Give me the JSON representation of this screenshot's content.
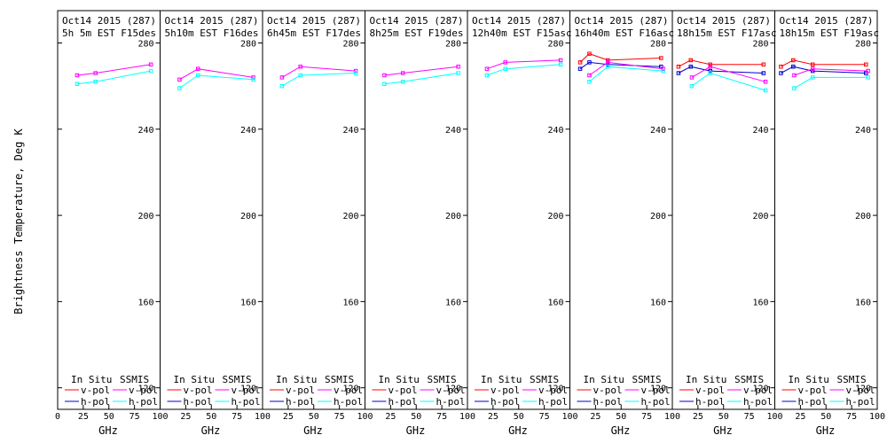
{
  "chart_data": {
    "type": "line",
    "ylabel": "Brightness Temperature, Deg K",
    "ylim": [
      110,
      295
    ],
    "yticks": [
      120,
      160,
      200,
      240,
      280
    ],
    "xlim": [
      0,
      100
    ],
    "xticks": [
      0,
      25,
      50,
      75,
      100
    ],
    "first_panel_xtick_labels": [
      "0",
      "25",
      "50",
      "75",
      "100"
    ],
    "other_panel_xtick_labels": [
      "25",
      "50",
      "75",
      "100"
    ],
    "xlabel": "GHz",
    "legend": {
      "insitu_header": "In Situ",
      "ssmis_header": "SSMIS",
      "vpol_label": "v-pol",
      "hpol_label": "h-pol"
    },
    "colors": {
      "insitu_v": "#ff0000",
      "insitu_h": "#0000cc",
      "ssmis_v": "#ff00ff",
      "ssmis_h": "#00ffff"
    },
    "panels": [
      {
        "title_line1": "Oct14 2015 (287)",
        "title_line2": "5h 5m  EST F15des",
        "series": [
          {
            "name": "SSMIS v-pol",
            "key": "ssmis_v",
            "x": [
              19,
              37,
              91
            ],
            "y": [
              265,
              266,
              270
            ]
          },
          {
            "name": "SSMIS h-pol",
            "key": "ssmis_h",
            "x": [
              19,
              37,
              91
            ],
            "y": [
              261,
              262,
              267
            ]
          }
        ]
      },
      {
        "title_line1": "Oct14 2015 (287)",
        "title_line2": "5h10m  EST F16des",
        "series": [
          {
            "name": "SSMIS v-pol",
            "key": "ssmis_v",
            "x": [
              19,
              37,
              91
            ],
            "y": [
              263,
              268,
              264
            ]
          },
          {
            "name": "SSMIS h-pol",
            "key": "ssmis_h",
            "x": [
              19,
              37,
              91
            ],
            "y": [
              259,
              265,
              263
            ]
          }
        ]
      },
      {
        "title_line1": "Oct14 2015 (287)",
        "title_line2": "6h45m  EST F17des",
        "series": [
          {
            "name": "SSMIS v-pol",
            "key": "ssmis_v",
            "x": [
              19,
              37,
              91
            ],
            "y": [
              264,
              269,
              267
            ]
          },
          {
            "name": "SSMIS h-pol",
            "key": "ssmis_h",
            "x": [
              19,
              37,
              91
            ],
            "y": [
              260,
              265,
              266
            ]
          }
        ]
      },
      {
        "title_line1": "Oct14 2015 (287)",
        "title_line2": "8h25m  EST F19des",
        "series": [
          {
            "name": "SSMIS v-pol",
            "key": "ssmis_v",
            "x": [
              19,
              37,
              91
            ],
            "y": [
              265,
              266,
              269
            ]
          },
          {
            "name": "SSMIS h-pol",
            "key": "ssmis_h",
            "x": [
              19,
              37,
              91
            ],
            "y": [
              261,
              262,
              266
            ]
          }
        ]
      },
      {
        "title_line1": "Oct14 2015 (287)",
        "title_line2": "12h40m  EST F15asc",
        "series": [
          {
            "name": "SSMIS v-pol",
            "key": "ssmis_v",
            "x": [
              19,
              37,
              91
            ],
            "y": [
              268,
              271,
              272
            ]
          },
          {
            "name": "SSMIS h-pol",
            "key": "ssmis_h",
            "x": [
              19,
              37,
              91
            ],
            "y": [
              265,
              268,
              270
            ]
          }
        ]
      },
      {
        "title_line1": "Oct14 2015 (287)",
        "title_line2": "16h40m  EST F16asc",
        "series": [
          {
            "name": "In Situ v-pol",
            "key": "insitu_v",
            "x": [
              10,
              19,
              37,
              89
            ],
            "y": [
              271,
              275,
              272,
              273
            ]
          },
          {
            "name": "In Situ h-pol",
            "key": "insitu_h",
            "x": [
              10,
              19,
              37,
              89
            ],
            "y": [
              268,
              271,
              270,
              269
            ]
          },
          {
            "name": "SSMIS v-pol",
            "key": "ssmis_v",
            "x": [
              19,
              37,
              91
            ],
            "y": [
              265,
              271,
              268
            ]
          },
          {
            "name": "SSMIS h-pol",
            "key": "ssmis_h",
            "x": [
              19,
              37,
              91
            ],
            "y": [
              262,
              269,
              267
            ]
          }
        ]
      },
      {
        "title_line1": "Oct14 2015 (287)",
        "title_line2": "18h15m  EST F17asc",
        "series": [
          {
            "name": "In Situ v-pol",
            "key": "insitu_v",
            "x": [
              6,
              18,
              37,
              89
            ],
            "y": [
              269,
              272,
              270,
              270
            ]
          },
          {
            "name": "In Situ h-pol",
            "key": "insitu_h",
            "x": [
              6,
              18,
              37,
              89
            ],
            "y": [
              266,
              269,
              267,
              266
            ]
          },
          {
            "name": "SSMIS v-pol",
            "key": "ssmis_v",
            "x": [
              19,
              37,
              91
            ],
            "y": [
              264,
              269,
              262
            ]
          },
          {
            "name": "SSMIS h-pol",
            "key": "ssmis_h",
            "x": [
              19,
              37,
              91
            ],
            "y": [
              260,
              266,
              258
            ]
          }
        ]
      },
      {
        "title_line1": "Oct14 2015 (287)",
        "title_line2": "18h15m  EST F19asc",
        "series": [
          {
            "name": "In Situ v-pol",
            "key": "insitu_v",
            "x": [
              6,
              18,
              37,
              89
            ],
            "y": [
              269,
              272,
              270,
              270
            ]
          },
          {
            "name": "In Situ h-pol",
            "key": "insitu_h",
            "x": [
              6,
              18,
              37,
              89
            ],
            "y": [
              266,
              269,
              267,
              266
            ]
          },
          {
            "name": "SSMIS v-pol",
            "key": "ssmis_v",
            "x": [
              19,
              37,
              91
            ],
            "y": [
              265,
              268,
              267
            ]
          },
          {
            "name": "SSMIS h-pol",
            "key": "ssmis_h",
            "x": [
              19,
              37,
              91
            ],
            "y": [
              259,
              264,
              264
            ]
          }
        ]
      }
    ]
  }
}
